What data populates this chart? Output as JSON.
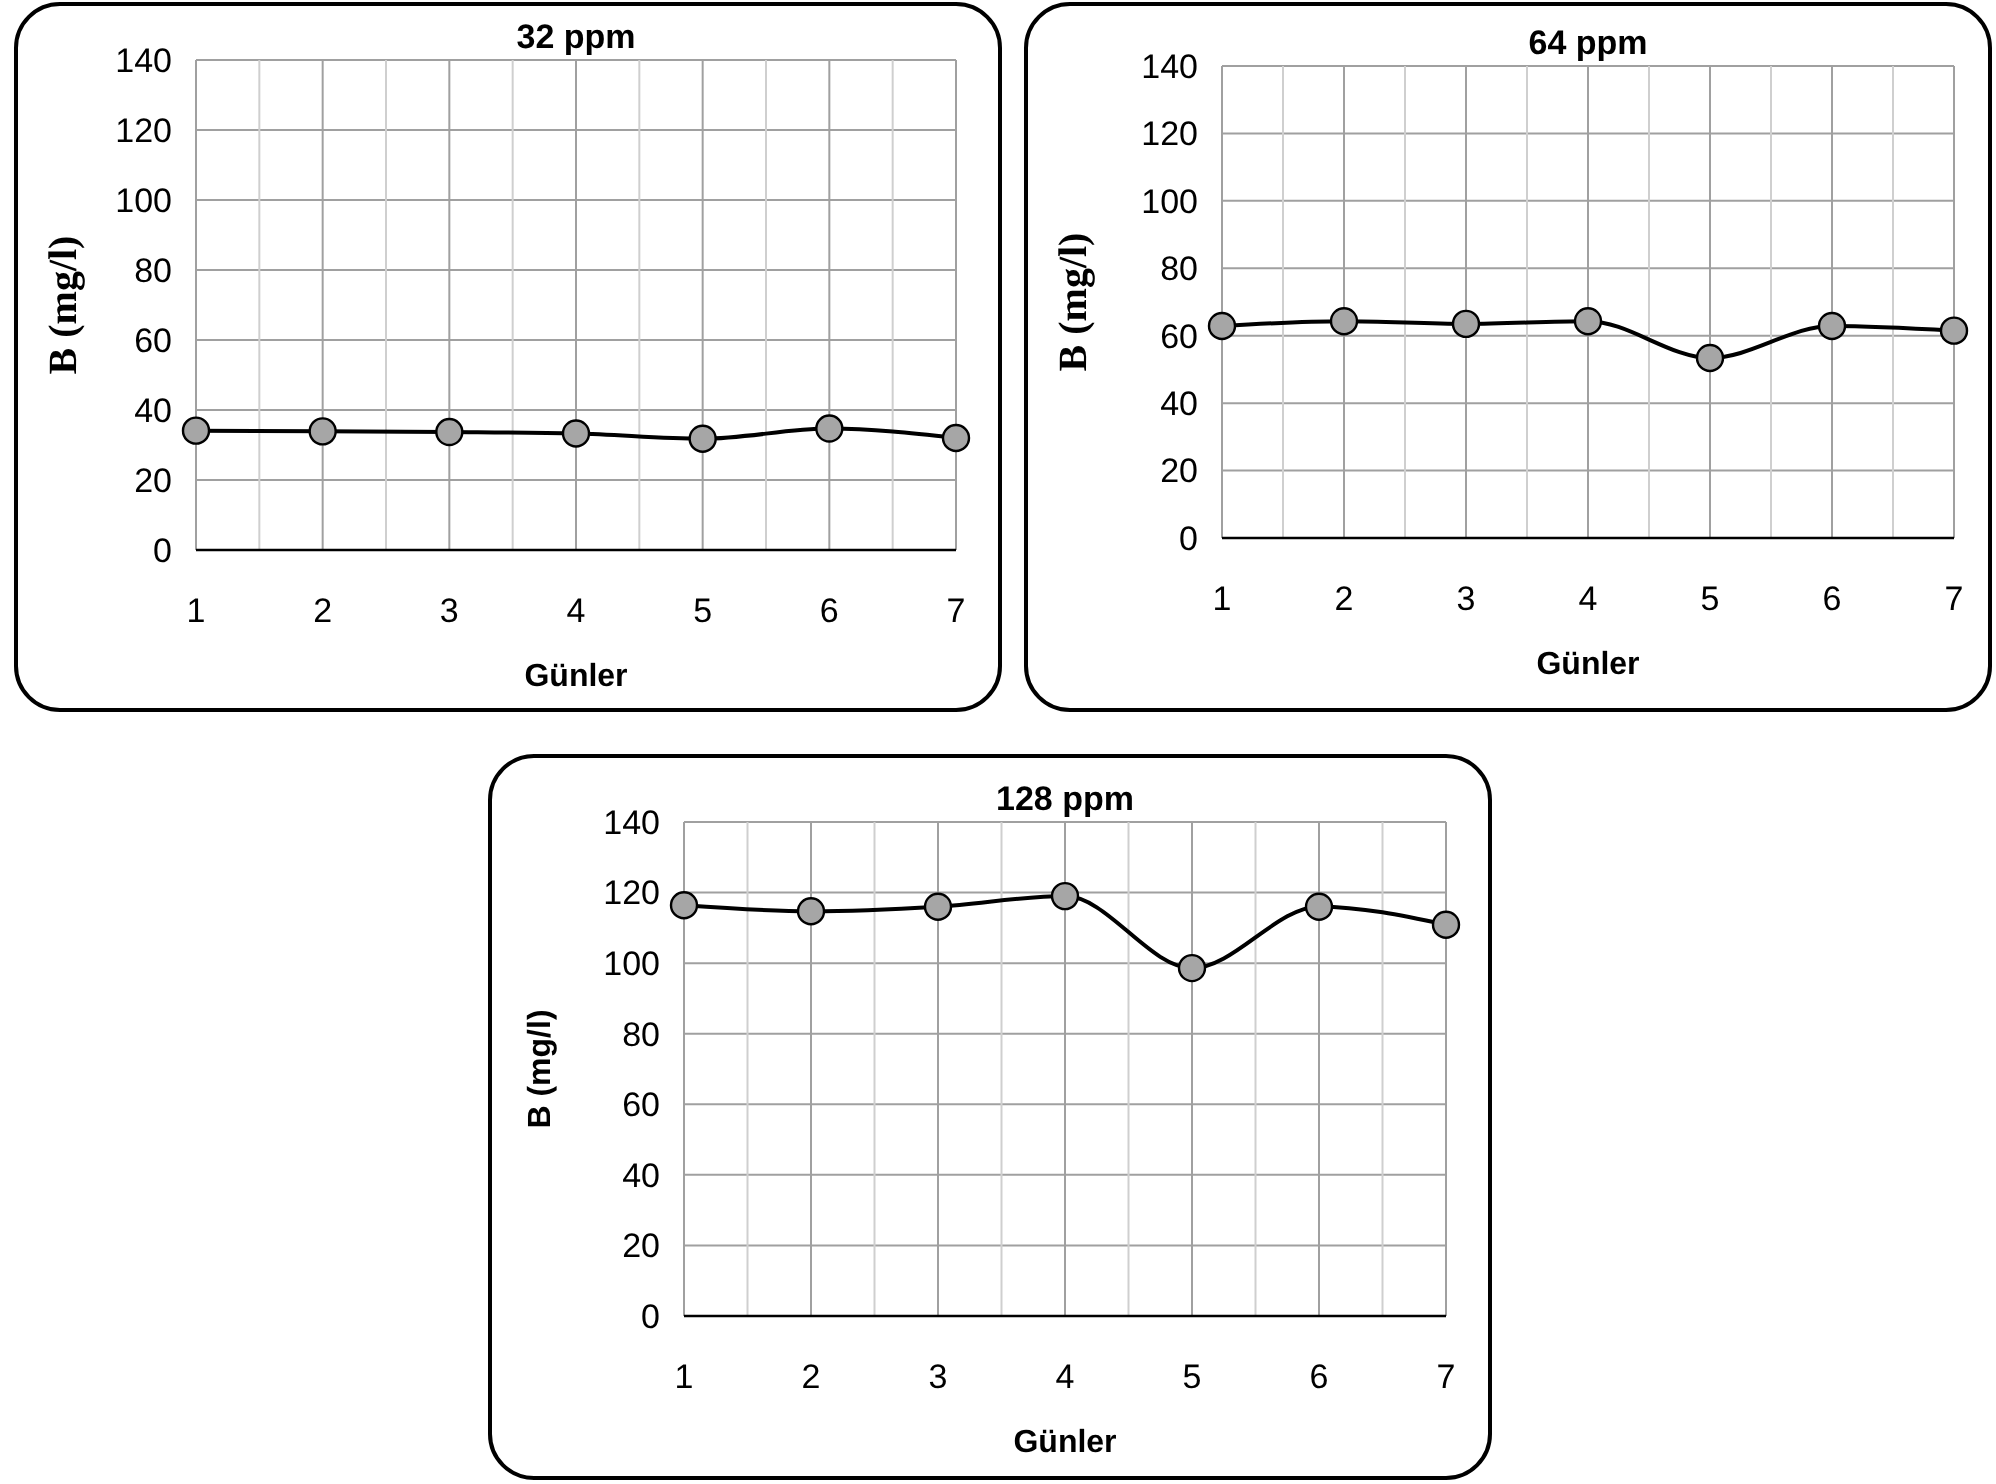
{
  "chart_data": [
    {
      "type": "line",
      "title": "32 ppm",
      "xlabel": "Günler",
      "ylabel": "B (mg/l)",
      "x": [
        1,
        2,
        3,
        4,
        5,
        6,
        7
      ],
      "xlim": [
        1,
        7
      ],
      "xticks": [
        1,
        {
          "value": 1.5,
          "label": null
        },
        2,
        {
          "value": 2.5,
          "label": null
        },
        3,
        {
          "value": 3.5,
          "label": null
        },
        4,
        {
          "value": 4.5,
          "label": null
        },
        5,
        {
          "value": 5.5,
          "label": null
        },
        6,
        {
          "value": 6.5,
          "label": null
        },
        7
      ],
      "ylim": [
        0,
        140
      ],
      "yticks": [
        0,
        20,
        40,
        60,
        80,
        100,
        120,
        140
      ],
      "grid": true,
      "marker": "circle",
      "line_style": "solid",
      "series": [
        {
          "color": "#a6a6a6",
          "values": [
            34.1,
            33.9,
            33.7,
            33.3,
            31.8,
            34.7,
            32
          ]
        }
      ]
    },
    {
      "type": "line",
      "title": "64 ppm",
      "xlabel": "Günler",
      "ylabel": "B (mg/l)",
      "x": [
        1,
        2,
        3,
        4,
        5,
        6,
        7
      ],
      "xlim": [
        1,
        7
      ],
      "xticks": [
        1,
        {
          "value": 1.5,
          "label": null
        },
        2,
        {
          "value": 2.5,
          "label": null
        },
        3,
        {
          "value": 3.5,
          "label": null
        },
        4,
        {
          "value": 4.5,
          "label": null
        },
        5,
        {
          "value": 5.5,
          "label": null
        },
        6,
        {
          "value": 6.5,
          "label": null
        },
        7
      ],
      "ylim": [
        0,
        140
      ],
      "yticks": [
        0,
        20,
        40,
        60,
        80,
        100,
        120,
        140
      ],
      "grid": true,
      "marker": "circle",
      "line_style": "solid",
      "series": [
        {
          "color": "#a6a6a6",
          "values": [
            62.9,
            64.3,
            63.5,
            64.3,
            53.4,
            62.9,
            61.5
          ]
        }
      ]
    },
    {
      "type": "line",
      "title": "128 ppm",
      "xlabel": "Günler",
      "ylabel": "B (mg/l)",
      "x": [
        1,
        2,
        3,
        4,
        5,
        6,
        7
      ],
      "xlim": [
        1,
        7
      ],
      "xticks": [
        1,
        {
          "value": 1.5,
          "label": null
        },
        2,
        {
          "value": 2.5,
          "label": null
        },
        3,
        {
          "value": 3.5,
          "label": null
        },
        4,
        {
          "value": 4.5,
          "label": null
        },
        5,
        {
          "value": 5.5,
          "label": null
        },
        6,
        {
          "value": 6.5,
          "label": null
        },
        7
      ],
      "ylim": [
        0,
        140
      ],
      "yticks": [
        0,
        20,
        40,
        60,
        80,
        100,
        120,
        140
      ],
      "grid": true,
      "marker": "circle",
      "line_style": "solid",
      "series": [
        {
          "color": "#a6a6a6",
          "values": [
            116.4,
            114.7,
            116,
            119,
            98.6,
            116,
            110.9
          ]
        }
      ]
    }
  ]
}
